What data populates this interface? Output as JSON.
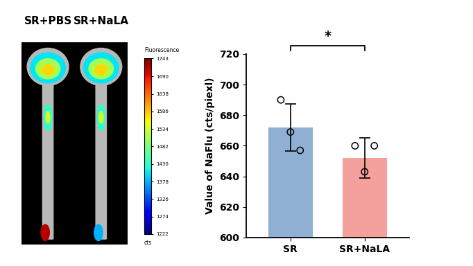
{
  "chart_data": [
    {
      "type": "image",
      "labels": [
        "SR+PBS",
        "SR+NaLA"
      ],
      "colorbar": {
        "label": "Fluorescence",
        "unit": "cts",
        "range": [
          1222,
          1743
        ],
        "ticks": [
          1222,
          1274,
          1326,
          1378,
          1430,
          1482,
          1534,
          1586,
          1638,
          1690,
          1743
        ]
      }
    },
    {
      "type": "bar",
      "categories": [
        "SR",
        "SR+NaLA"
      ],
      "values": [
        672,
        652
      ],
      "errors": [
        15.5,
        13
      ],
      "points": [
        [
          690,
          657,
          669
        ],
        [
          660,
          660,
          643
        ]
      ],
      "colors": [
        "#8fb0d3",
        "#f4a09c"
      ],
      "y_label": "Value of NaFlu (cts/piexl)",
      "ylim": [
        600,
        720
      ],
      "yticks": [
        600,
        620,
        640,
        660,
        680,
        700,
        720
      ],
      "significance": {
        "label": "*",
        "between": [
          "SR",
          "SR+NaLA"
        ]
      }
    }
  ]
}
